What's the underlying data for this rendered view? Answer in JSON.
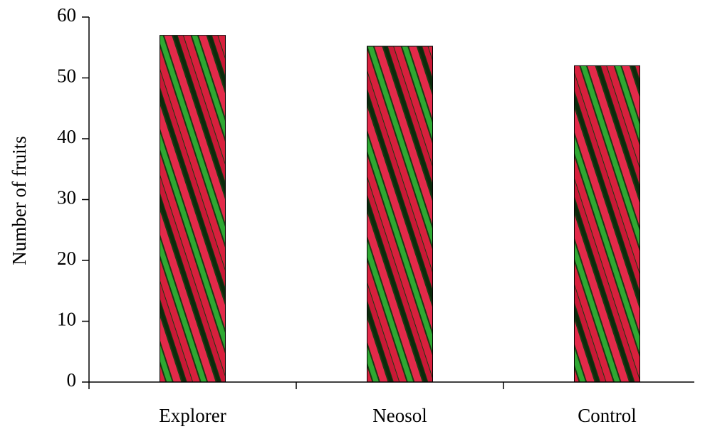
{
  "chart_data": {
    "type": "bar",
    "y_label": "Number of fruits",
    "categories": [
      "Explorer",
      "Neosol",
      "Control"
    ],
    "values": [
      57,
      55.2,
      52
    ],
    "ylim": [
      0,
      60
    ],
    "yticks": [
      0,
      10,
      20,
      30,
      40,
      50,
      60
    ]
  }
}
